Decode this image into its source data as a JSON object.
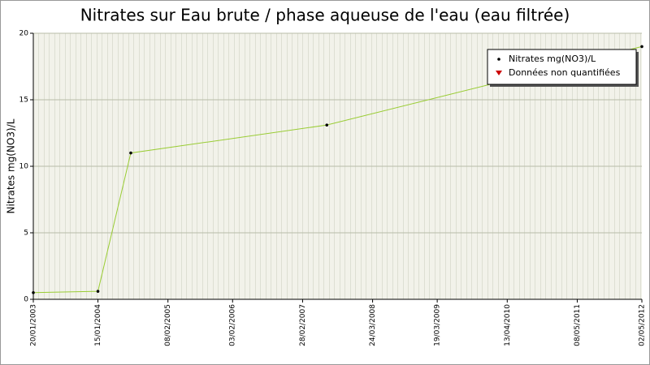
{
  "chart_data": {
    "type": "line",
    "title": "Nitrates sur Eau brute / phase aqueuse de l'eau (eau filtrée)",
    "y_label": "Nitrates mg(NO3)/L",
    "x": [
      "20/01/2003",
      "15/01/2004",
      "16/07/2004",
      "13/07/2007",
      "02/05/2012"
    ],
    "series": [
      {
        "name": "Nitrates mg(NO3)/L",
        "color": "#99cc33",
        "values": [
          0.5,
          0.6,
          11.0,
          13.1,
          19.0
        ]
      },
      {
        "name": "Données non quantifiées",
        "color": "#cc0000",
        "values": [
          null,
          null,
          null,
          null,
          null
        ]
      }
    ],
    "xlim": [
      "20/01/2003",
      "02/05/2012"
    ],
    "xticks": [
      "20/01/2003",
      "15/01/2004",
      "08/02/2005",
      "03/02/2006",
      "28/02/2007",
      "24/03/2008",
      "19/03/2009",
      "13/04/2010",
      "08/05/2011",
      "02/05/2012"
    ],
    "ylim": [
      0,
      20
    ],
    "yticks": [
      0,
      5,
      10,
      15,
      20
    ],
    "grid": true,
    "legend": "top-right"
  }
}
